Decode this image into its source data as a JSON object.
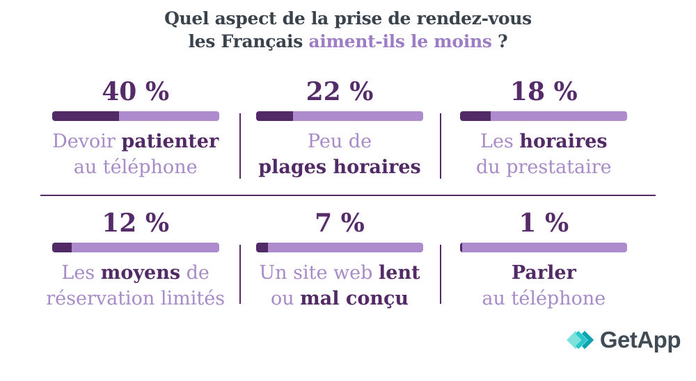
{
  "title": {
    "line1": "Quel aspect de la prise de rendez-vous",
    "line2_prefix": "les Français ",
    "line2_highlight": "aiment-ils le moins",
    "line2_suffix": " ?"
  },
  "stats": [
    {
      "percent": "40 %",
      "value": 40,
      "lines": [
        [
          {
            "text": "Devoir ",
            "dark": false
          },
          {
            "text": "patienter",
            "dark": true
          }
        ],
        [
          {
            "text": "au téléphone",
            "dark": false
          }
        ]
      ]
    },
    {
      "percent": "22 %",
      "value": 22,
      "lines": [
        [
          {
            "text": "Peu de",
            "dark": false
          }
        ],
        [
          {
            "text": "plages horaires",
            "dark": true
          }
        ]
      ]
    },
    {
      "percent": "18 %",
      "value": 18,
      "lines": [
        [
          {
            "text": "Les ",
            "dark": false
          },
          {
            "text": "horaires",
            "dark": true
          }
        ],
        [
          {
            "text": "du prestataire",
            "dark": false
          }
        ]
      ]
    },
    {
      "percent": "12 %",
      "value": 12,
      "lines": [
        [
          {
            "text": "Les ",
            "dark": false
          },
          {
            "text": "moyens",
            "dark": true
          },
          {
            "text": " de",
            "dark": false
          }
        ],
        [
          {
            "text": "réservation limités",
            "dark": false
          }
        ]
      ]
    },
    {
      "percent": "7 %",
      "value": 7,
      "lines": [
        [
          {
            "text": "Un site web ",
            "dark": false
          },
          {
            "text": "lent",
            "dark": true
          }
        ],
        [
          {
            "text": "ou ",
            "dark": false
          },
          {
            "text": "mal conçu",
            "dark": true
          }
        ]
      ]
    },
    {
      "percent": "1 %",
      "value": 1,
      "lines": [
        [
          {
            "text": "Parler",
            "dark": true
          }
        ],
        [
          {
            "text": "au téléphone",
            "dark": false
          }
        ]
      ]
    }
  ],
  "logo": {
    "text": "GetApp"
  },
  "colors": {
    "dark_purple": "#522a66",
    "light_purple": "#ad8bcd",
    "title_gray": "#3a434c",
    "title_highlight": "#9d7ec6",
    "logo_gray": "#414b54",
    "logo_aqua_light": "#7de2dc",
    "logo_teal_mid": "#2bc6cb",
    "logo_teal_dark": "#0da4b2"
  },
  "chart_data": {
    "type": "bar",
    "title": "Quel aspect de la prise de rendez-vous les Français aiment-ils le moins ?",
    "categories": [
      "Devoir patienter au téléphone",
      "Peu de plages horaires",
      "Les horaires du prestataire",
      "Les moyens de réservation limités",
      "Un site web lent ou mal conçu",
      "Parler au téléphone"
    ],
    "values": [
      40,
      22,
      18,
      12,
      7,
      1
    ],
    "unit": "%",
    "xlim": [
      0,
      100
    ],
    "layout": "3x2 grid of horizontal progress bars, value label above each bar",
    "legend": "none",
    "grid": false
  }
}
